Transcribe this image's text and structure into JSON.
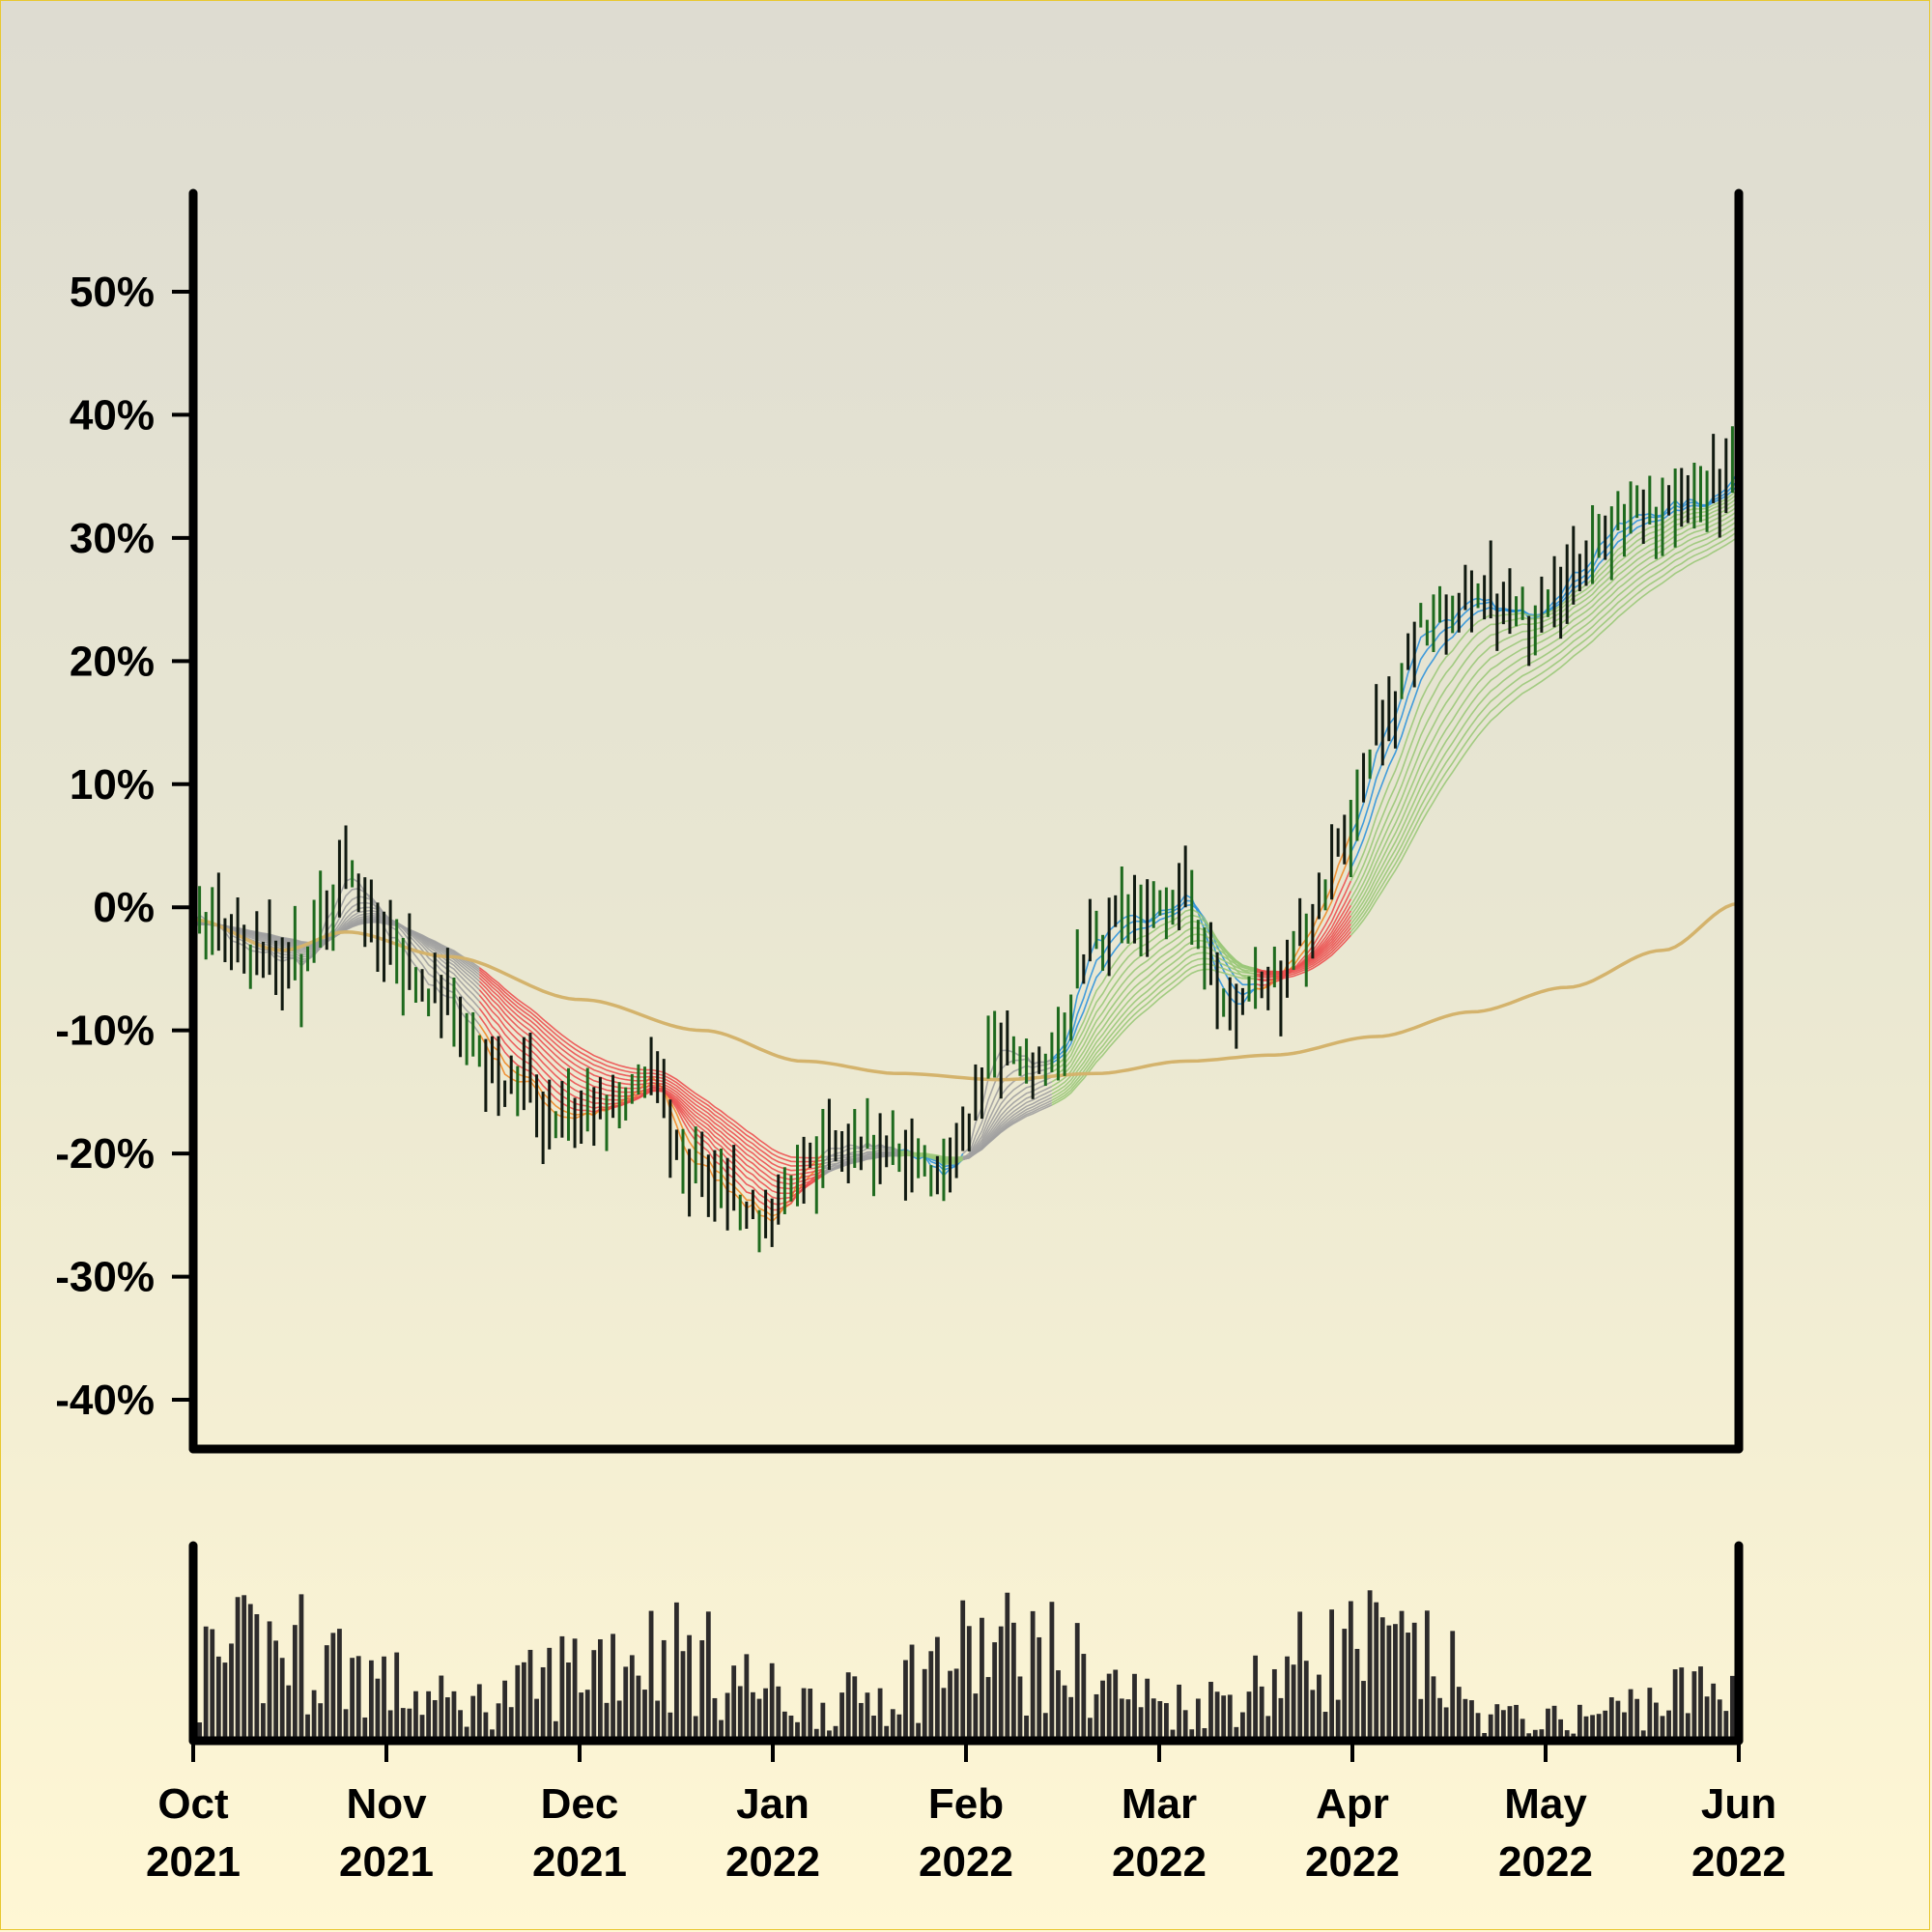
{
  "chart_data": {
    "type": "line",
    "title": "",
    "xlabel": "",
    "ylabel": "",
    "ylim": [
      -0.44,
      0.58
    ],
    "y_ticks": [
      {
        "value": 0.5,
        "label": "50%"
      },
      {
        "value": 0.4,
        "label": "40%"
      },
      {
        "value": 0.3,
        "label": "30%"
      },
      {
        "value": 0.2,
        "label": "20%"
      },
      {
        "value": 0.1,
        "label": "10%"
      },
      {
        "value": 0.0,
        "label": "0%"
      },
      {
        "value": -0.1,
        "label": "-10%"
      },
      {
        "value": -0.2,
        "label": "-20%"
      },
      {
        "value": -0.3,
        "label": "-30%"
      },
      {
        "value": -0.4,
        "label": "-40%"
      }
    ],
    "x_ticks": [
      {
        "month": "Oct",
        "year": "2021"
      },
      {
        "month": "Nov",
        "year": "2021"
      },
      {
        "month": "Dec",
        "year": "2021"
      },
      {
        "month": "Jan",
        "year": "2022"
      },
      {
        "month": "Feb",
        "year": "2022"
      },
      {
        "month": "Mar",
        "year": "2022"
      },
      {
        "month": "Apr",
        "year": "2022"
      },
      {
        "month": "May",
        "year": "2022"
      },
      {
        "month": "Jun",
        "year": "2022"
      }
    ],
    "x_range": [
      "2021-10-01",
      "2022-06-01"
    ],
    "grid": false,
    "legend": "none",
    "price_key_points": [
      {
        "date": "2021-10-01",
        "value": -0.005
      },
      {
        "date": "2021-10-10",
        "value": -0.04
      },
      {
        "date": "2021-10-18",
        "value": -0.045
      },
      {
        "date": "2021-10-25",
        "value": 0.025
      },
      {
        "date": "2021-11-01",
        "value": -0.03
      },
      {
        "date": "2021-11-10",
        "value": -0.08
      },
      {
        "date": "2021-11-20",
        "value": -0.14
      },
      {
        "date": "2021-11-28",
        "value": -0.17
      },
      {
        "date": "2021-12-05",
        "value": -0.165
      },
      {
        "date": "2021-12-12",
        "value": -0.14
      },
      {
        "date": "2021-12-18",
        "value": -0.21
      },
      {
        "date": "2021-12-24",
        "value": -0.23
      },
      {
        "date": "2021-12-30",
        "value": -0.255
      },
      {
        "date": "2022-01-05",
        "value": -0.215
      },
      {
        "date": "2022-01-12",
        "value": -0.185
      },
      {
        "date": "2022-01-20",
        "value": -0.2
      },
      {
        "date": "2022-01-28",
        "value": -0.215
      },
      {
        "date": "2022-02-05",
        "value": -0.11
      },
      {
        "date": "2022-02-12",
        "value": -0.13
      },
      {
        "date": "2022-02-20",
        "value": -0.02
      },
      {
        "date": "2022-02-28",
        "value": -0.01
      },
      {
        "date": "2022-03-06",
        "value": 0.01
      },
      {
        "date": "2022-03-12",
        "value": -0.08
      },
      {
        "date": "2022-03-18",
        "value": -0.07
      },
      {
        "date": "2022-03-25",
        "value": -0.02
      },
      {
        "date": "2022-04-01",
        "value": 0.07
      },
      {
        "date": "2022-04-06",
        "value": 0.15
      },
      {
        "date": "2022-04-12",
        "value": 0.23
      },
      {
        "date": "2022-04-20",
        "value": 0.245
      },
      {
        "date": "2022-04-28",
        "value": 0.235
      },
      {
        "date": "2022-05-05",
        "value": 0.27
      },
      {
        "date": "2022-05-12",
        "value": 0.31
      },
      {
        "date": "2022-05-20",
        "value": 0.325
      },
      {
        "date": "2022-05-26",
        "value": 0.33
      },
      {
        "date": "2022-06-01",
        "value": 0.36
      }
    ],
    "long_ma_key_points": [
      {
        "date": "2021-10-01",
        "value": -0.01
      },
      {
        "date": "2021-10-15",
        "value": -0.035
      },
      {
        "date": "2021-10-25",
        "value": -0.02
      },
      {
        "date": "2021-11-10",
        "value": -0.04
      },
      {
        "date": "2021-12-01",
        "value": -0.075
      },
      {
        "date": "2021-12-20",
        "value": -0.1
      },
      {
        "date": "2022-01-05",
        "value": -0.125
      },
      {
        "date": "2022-01-20",
        "value": -0.135
      },
      {
        "date": "2022-02-05",
        "value": -0.14
      },
      {
        "date": "2022-02-20",
        "value": -0.135
      },
      {
        "date": "2022-03-06",
        "value": -0.125
      },
      {
        "date": "2022-03-20",
        "value": -0.12
      },
      {
        "date": "2022-04-05",
        "value": -0.105
      },
      {
        "date": "2022-04-20",
        "value": -0.085
      },
      {
        "date": "2022-05-05",
        "value": -0.065
      },
      {
        "date": "2022-05-20",
        "value": -0.035
      },
      {
        "date": "2022-06-01",
        "value": 0.003
      }
    ],
    "ribbon_regimes": [
      {
        "start": "2021-10-01",
        "end": "2021-11-15",
        "color": "#a0a0a0"
      },
      {
        "start": "2021-11-15",
        "end": "2022-01-08",
        "color": "#ec5050"
      },
      {
        "start": "2022-01-08",
        "end": "2022-01-20",
        "color": "#a0a0a0"
      },
      {
        "start": "2022-01-20",
        "end": "2022-01-30",
        "color": "#9ac878"
      },
      {
        "start": "2022-01-30",
        "end": "2022-02-13",
        "color": "#a0a0a0"
      },
      {
        "start": "2022-02-13",
        "end": "2022-03-17",
        "color": "#9ac878"
      },
      {
        "start": "2022-03-17",
        "end": "2022-04-01",
        "color": "#ec5050"
      },
      {
        "start": "2022-04-01",
        "end": "2022-06-01",
        "color": "#9ac878"
      }
    ],
    "colors": {
      "long_ma": "#d4b36c",
      "ribbon_grey": "#a0a0a0",
      "ribbon_red": "#ec5050",
      "ribbon_green": "#9ac878",
      "ribbon_blue": "#2f93dc",
      "ribbon_orange": "#f08a28",
      "bar_up": "#111a11",
      "bar_down": "#1e6a1e",
      "volume": "#2d2b2b",
      "axis": "#000000"
    }
  }
}
